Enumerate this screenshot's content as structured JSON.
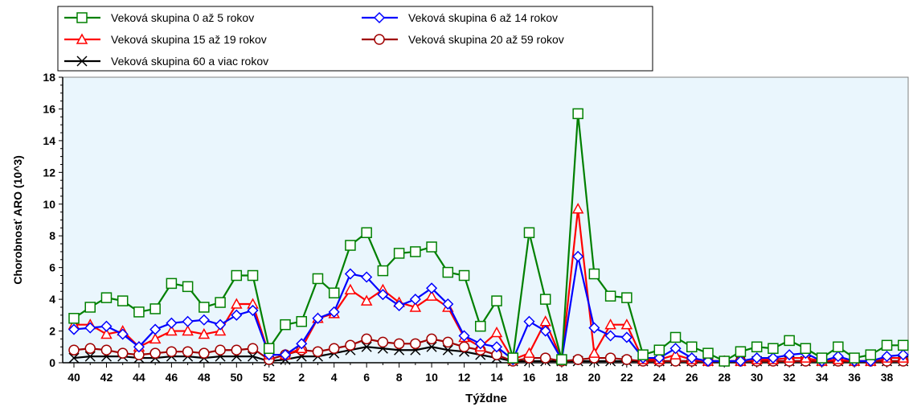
{
  "chart_data": {
    "type": "line",
    "title": "",
    "xlabel": "Týždne",
    "ylabel": "Chorobnosť ARO (10^3)",
    "ylim": [
      0,
      18
    ],
    "yticks": [
      0,
      2,
      4,
      6,
      8,
      10,
      12,
      14,
      16,
      18
    ],
    "grid": false,
    "legend_position": "top-left",
    "background": "#eaf6fd",
    "weeks": [
      "40",
      "41",
      "42",
      "43",
      "44",
      "45",
      "46",
      "47",
      "48",
      "49",
      "50",
      "51",
      "52",
      "1",
      "2",
      "3",
      "4",
      "5",
      "6",
      "7",
      "8",
      "9",
      "10",
      "11",
      "12",
      "13",
      "14",
      "15",
      "16",
      "17",
      "18",
      "19",
      "20",
      "21",
      "22",
      "23",
      "24",
      "25",
      "26",
      "27",
      "28",
      "29",
      "30",
      "31",
      "32",
      "33",
      "34",
      "35",
      "36",
      "37",
      "38",
      "39"
    ],
    "x_tick_labels": [
      "40",
      "42",
      "44",
      "46",
      "48",
      "50",
      "52",
      "2",
      "4",
      "6",
      "8",
      "10",
      "12",
      "14",
      "16",
      "18",
      "20",
      "22",
      "24",
      "26",
      "28",
      "30",
      "32",
      "34",
      "36",
      "38"
    ],
    "series": [
      {
        "name": "Veková skupina 0 až 5 rokov",
        "color": "#008000",
        "marker": "square",
        "values": [
          2.8,
          3.5,
          4.1,
          3.9,
          3.2,
          3.4,
          5.0,
          4.8,
          3.5,
          3.8,
          5.5,
          5.5,
          0.9,
          2.4,
          2.6,
          5.3,
          4.4,
          7.4,
          8.2,
          5.8,
          6.9,
          7.0,
          7.3,
          5.7,
          5.5,
          2.3,
          3.9,
          0.3,
          8.2,
          4.0,
          0.2,
          15.7,
          5.6,
          4.2,
          4.1,
          0.5,
          0.8,
          1.6,
          1.0,
          0.6,
          0.1,
          0.7,
          1.0,
          0.9,
          1.4,
          0.9,
          0.3,
          1.0,
          0.3,
          0.5,
          1.1,
          1.1
        ]
      },
      {
        "name": "Veková skupina 6 až 14 rokov",
        "color": "#0000ff",
        "marker": "diamond",
        "values": [
          2.1,
          2.2,
          2.3,
          1.8,
          1.0,
          2.1,
          2.5,
          2.6,
          2.7,
          2.4,
          3.0,
          3.3,
          0.5,
          0.5,
          1.2,
          2.8,
          3.2,
          5.6,
          5.4,
          4.3,
          3.6,
          4.0,
          4.7,
          3.7,
          1.7,
          1.2,
          1.0,
          0.2,
          2.6,
          2.0,
          0.2,
          6.7,
          2.2,
          1.7,
          1.6,
          0.3,
          0.3,
          0.9,
          0.3,
          0.1,
          0.1,
          0.1,
          0.3,
          0.3,
          0.5,
          0.6,
          0.1,
          0.4,
          0.1,
          0.1,
          0.4,
          0.5
        ]
      },
      {
        "name": "Veková skupina 15 až 19 rokov",
        "color": "#ff0000",
        "marker": "triangle",
        "values": [
          2.4,
          2.4,
          1.8,
          2.0,
          1.0,
          1.5,
          2.0,
          2.0,
          1.8,
          2.0,
          3.7,
          3.7,
          0.5,
          0.5,
          0.9,
          2.8,
          3.1,
          4.6,
          3.9,
          4.6,
          3.8,
          3.5,
          4.2,
          3.5,
          1.6,
          1.0,
          1.9,
          0.2,
          0.6,
          2.6,
          0.2,
          9.7,
          0.6,
          2.4,
          2.4,
          0.2,
          0.2,
          0.5,
          0.2,
          0.1,
          0.1,
          0.1,
          0.2,
          0.2,
          0.3,
          0.3,
          0.1,
          0.2,
          0.1,
          0.1,
          0.3,
          0.3
        ]
      },
      {
        "name": "Veková skupina 20 až 59 rokov",
        "color": "#a00000",
        "marker": "circle",
        "values": [
          0.8,
          0.9,
          0.8,
          0.6,
          0.5,
          0.6,
          0.7,
          0.7,
          0.6,
          0.8,
          0.8,
          0.9,
          0.2,
          0.5,
          0.8,
          0.7,
          0.9,
          1.1,
          1.5,
          1.3,
          1.2,
          1.2,
          1.5,
          1.3,
          1.0,
          0.8,
          0.5,
          0.1,
          0.3,
          0.3,
          0.1,
          0.2,
          0.3,
          0.3,
          0.2,
          0.1,
          0.1,
          0.1,
          0.1,
          0.1,
          0.1,
          0.1,
          0.1,
          0.1,
          0.1,
          0.1,
          0.1,
          0.1,
          0.1,
          0.1,
          0.1,
          0.1
        ]
      },
      {
        "name": "Veková skupina 60 a viac rokov",
        "color": "#000000",
        "marker": "x",
        "values": [
          0.3,
          0.4,
          0.4,
          0.4,
          0.3,
          0.3,
          0.4,
          0.4,
          0.3,
          0.4,
          0.4,
          0.4,
          0.1,
          0.2,
          0.4,
          0.4,
          0.6,
          0.8,
          1.0,
          0.9,
          0.8,
          0.8,
          1.0,
          0.8,
          0.7,
          0.5,
          0.3,
          0.1,
          0.1,
          0.1,
          0.1,
          0.1,
          0.1,
          0.1,
          0.1,
          0.1,
          0.1,
          0.1,
          0.1,
          0.1,
          0.1,
          0.1,
          0.1,
          0.1,
          0.1,
          0.1,
          0.1,
          0.1,
          0.1,
          0.1,
          0.1,
          0.1
        ]
      }
    ]
  }
}
